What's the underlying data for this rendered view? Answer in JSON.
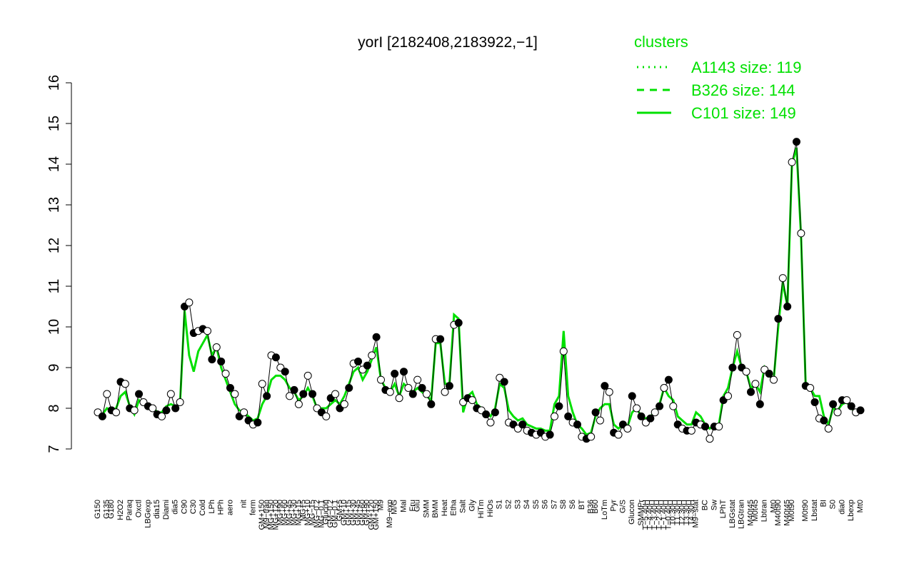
{
  "chart_data": {
    "type": "line",
    "title": "yorI [2182408,2183922,−1]",
    "color": "#000000",
    "categories": [
      "G150",
      null,
      "G135",
      "G180",
      null,
      "H2O2",
      null,
      "Paraq",
      null,
      "Oxctl",
      null,
      "LBGexp",
      null,
      "dia15",
      null,
      "Diami",
      null,
      "dia5",
      null,
      "C90",
      null,
      "C30",
      null,
      "Cold",
      null,
      "LPh",
      null,
      "HPh",
      null,
      "aero",
      null,
      null,
      "nit",
      null,
      "ferm",
      null,
      "GM+150",
      "M9−tran",
      "MG+150",
      "MG+120",
      "MG+90",
      "MG+60",
      "MG+45",
      "MG+30",
      "MG+15",
      "MG+5",
      "MG+10",
      "MG−15",
      "MG−0.2",
      "MG−0.1",
      "Glucon",
      "GM−0.2",
      "GM−0.1",
      "GM+5",
      "GM+10",
      "GM+15",
      "GM+30",
      "GM+45",
      "GM+60",
      "GM+90",
      "GM+120",
      "GM+150",
      "M9",
      null,
      "M9−exp",
      "M/G",
      null,
      "Mal",
      null,
      "Fru",
      "Glu",
      null,
      "SMM",
      null,
      "BMM",
      null,
      "Heat",
      null,
      "Etha",
      null,
      "Salt",
      null,
      "Gly",
      null,
      "HiTm",
      null,
      "HiOs",
      null,
      "S1",
      null,
      "S2",
      null,
      "S3",
      null,
      "S4",
      null,
      "S5",
      null,
      "S6",
      null,
      "S7",
      null,
      "S8",
      null,
      "S6",
      null,
      "BT",
      null,
      "B36",
      "B60",
      null,
      "LoTm",
      null,
      "Pyr",
      null,
      "G/S",
      null,
      "Glucon",
      null,
      "SMMPr",
      "T−5.40H",
      "T−4.40H",
      "T−3.40H",
      "T−2.40H",
      "T−1.40H",
      "T−0.40H",
      "T0.30H",
      "T1.30H",
      "T2.30H",
      "T3.30H",
      "T4.30H",
      "M9−stat",
      null,
      "BC",
      null,
      "Sw",
      null,
      "LPhT",
      null,
      "LBGstat",
      null,
      "LBGtran",
      null,
      "M40t45",
      "M0t45",
      null,
      "Lbtran",
      null,
      "Mt0",
      "M40t90",
      null,
      "M40t45",
      "M0t90",
      null,
      null,
      "M0t90",
      null,
      "Lbstat",
      null,
      "BI",
      null,
      "S0",
      null,
      "dia0",
      null,
      "Lbexp",
      null,
      "Mt0"
    ],
    "values": [
      7.9,
      7.8,
      8.35,
      7.95,
      7.9,
      8.65,
      8.6,
      8.0,
      7.95,
      8.35,
      8.15,
      8.05,
      8.0,
      7.85,
      7.8,
      7.95,
      8.35,
      8.0,
      8.15,
      10.5,
      10.6,
      9.85,
      9.9,
      9.95,
      9.9,
      9.2,
      9.5,
      9.15,
      8.85,
      8.5,
      8.35,
      7.8,
      7.9,
      7.7,
      7.6,
      7.65,
      8.6,
      8.3,
      9.3,
      9.25,
      9.0,
      8.9,
      8.3,
      8.45,
      8.1,
      8.35,
      8.8,
      8.35,
      8.0,
      7.9,
      7.8,
      8.25,
      8.35,
      8.0,
      8.1,
      8.5,
      9.1,
      9.15,
      8.95,
      9.05,
      9.3,
      9.75,
      8.7,
      8.45,
      8.4,
      8.85,
      8.25,
      8.9,
      8.5,
      8.35,
      8.7,
      8.5,
      8.35,
      8.1,
      9.7,
      9.7,
      8.4,
      8.55,
      10.05,
      10.1,
      8.15,
      8.25,
      8.2,
      8.0,
      7.95,
      7.85,
      7.65,
      7.9,
      8.75,
      8.65,
      7.65,
      7.6,
      7.5,
      7.6,
      7.45,
      7.4,
      7.35,
      7.4,
      7.3,
      7.35,
      7.8,
      8.05,
      9.4,
      7.8,
      7.65,
      7.6,
      7.3,
      7.25,
      7.3,
      7.9,
      7.7,
      8.55,
      8.4,
      7.4,
      7.35,
      7.6,
      7.5,
      8.3,
      8.0,
      7.8,
      7.65,
      7.75,
      7.9,
      8.05,
      8.5,
      8.7,
      8.05,
      7.6,
      7.5,
      7.45,
      7.45,
      7.65,
      7.6,
      7.55,
      7.25,
      7.55,
      7.55,
      8.2,
      8.3,
      9.0,
      9.8,
      9.0,
      8.9,
      8.4,
      8.6,
      8.1,
      8.95,
      8.85,
      8.7,
      10.2,
      11.2,
      10.5,
      14.05,
      14.55,
      12.3,
      8.55,
      8.5,
      8.15,
      7.75,
      7.7,
      7.5,
      8.1,
      7.9,
      8.2,
      8.2,
      8.05,
      7.9,
      7.95
    ],
    "series": [
      {
        "name": "C101 size: 149",
        "color": "#00e000",
        "dash": "solid",
        "values": [
          7.85,
          7.85,
          8.0,
          7.95,
          8.0,
          8.3,
          8.4,
          8.05,
          7.85,
          8.2,
          8.1,
          8.0,
          8.05,
          7.9,
          7.9,
          8.05,
          8.1,
          8.05,
          8.1,
          10.4,
          9.3,
          8.9,
          9.4,
          9.6,
          9.8,
          9.3,
          9.5,
          9.0,
          8.7,
          8.4,
          8.1,
          7.95,
          7.9,
          7.8,
          7.7,
          7.75,
          8.1,
          8.3,
          8.7,
          8.8,
          8.8,
          8.7,
          8.5,
          8.4,
          8.2,
          8.3,
          8.5,
          8.3,
          8.0,
          8.0,
          8.0,
          8.1,
          8.2,
          8.1,
          8.3,
          8.6,
          8.9,
          9.0,
          8.7,
          8.9,
          9.2,
          9.5,
          8.7,
          8.5,
          8.4,
          8.6,
          8.3,
          8.6,
          8.5,
          8.4,
          8.5,
          8.4,
          8.3,
          8.2,
          9.6,
          9.6,
          8.6,
          8.6,
          10.3,
          10.2,
          7.9,
          8.3,
          8.4,
          8.1,
          8.0,
          7.9,
          7.8,
          8.0,
          8.6,
          8.5,
          7.95,
          7.8,
          7.7,
          7.75,
          7.6,
          7.55,
          7.5,
          7.5,
          7.45,
          7.45,
          8.1,
          8.3,
          9.9,
          8.3,
          7.9,
          7.6,
          7.5,
          7.35,
          7.4,
          7.8,
          8.0,
          8.1,
          8.1,
          7.6,
          7.5,
          7.6,
          7.55,
          7.9,
          8.0,
          7.8,
          7.75,
          7.8,
          7.9,
          8.1,
          8.5,
          8.3,
          8.2,
          7.8,
          7.7,
          7.6,
          7.6,
          7.9,
          7.8,
          7.6,
          7.5,
          7.6,
          7.6,
          8.3,
          8.5,
          9.0,
          9.4,
          9.0,
          8.9,
          8.5,
          8.6,
          8.4,
          9.0,
          8.8,
          8.7,
          10.0,
          11.1,
          10.5,
          14.0,
          14.4,
          12.2,
          8.6,
          8.5,
          8.3,
          8.3,
          7.8,
          7.6,
          8.0,
          7.95,
          8.1,
          8.15,
          8.0,
          7.9,
          7.9
        ]
      }
    ],
    "legend": {
      "title": "clusters",
      "color": "#00e000",
      "entries": [
        {
          "name": "A1143 size: 119",
          "dash": "dotted"
        },
        {
          "name": "B326 size: 144",
          "dash": "dashed"
        },
        {
          "name": "C101 size: 149",
          "dash": "solid"
        }
      ]
    },
    "ylim": [
      7,
      16
    ],
    "yticks": [
      7,
      8,
      9,
      10,
      11,
      12,
      13,
      14,
      15,
      16
    ],
    "grid": false
  }
}
